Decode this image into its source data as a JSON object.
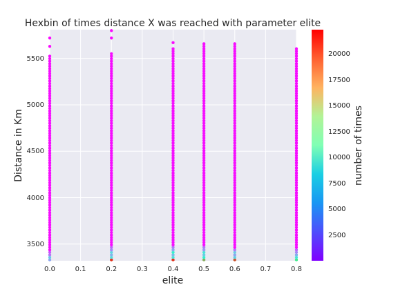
{
  "chart_data": {
    "type": "hexbin",
    "title": "Hexbin of times distance X was reached with parameter elite",
    "xlabel": "elite",
    "ylabel": "Distance in Km",
    "colorbar_label": "number of times",
    "xlim": [
      0.0,
      0.8
    ],
    "ylim": [
      3320,
      5810
    ],
    "x_ticks": [
      "0.0",
      "0.1",
      "0.2",
      "0.3",
      "0.4",
      "0.5",
      "0.6",
      "0.7",
      "0.8"
    ],
    "y_ticks": [
      "3500",
      "4000",
      "4500",
      "5000",
      "5500"
    ],
    "colorbar_ticks": [
      "2500",
      "5000",
      "7500",
      "10000",
      "12500",
      "15000",
      "17500",
      "20000"
    ],
    "colorbar_range": [
      0,
      22300
    ],
    "colormap": "rainbow",
    "grid": true,
    "background": "#eaeaf2",
    "series": [
      {
        "x": 0.0,
        "ymin": 3330,
        "ymax": 5550,
        "outliers": [
          5630,
          5720
        ],
        "bottom_counts": [
          5000,
          6500,
          3500,
          2500
        ]
      },
      {
        "x": 0.2,
        "ymin": 3330,
        "ymax": 5560,
        "outliers": [
          5720,
          5800
        ],
        "bottom_counts": [
          21000,
          7500,
          5500,
          7000,
          4000,
          3000
        ]
      },
      {
        "x": 0.4,
        "ymin": 3330,
        "ymax": 5620,
        "outliers": [
          5670
        ],
        "bottom_counts": [
          21000,
          8000,
          6000,
          9000,
          5000,
          3500
        ]
      },
      {
        "x": 0.5,
        "ymin": 3330,
        "ymax": 5670,
        "outliers": [],
        "bottom_counts": [
          17000,
          9000,
          6500,
          8000,
          4500,
          3500
        ]
      },
      {
        "x": 0.6,
        "ymin": 3330,
        "ymax": 5670,
        "outliers": [],
        "bottom_counts": [
          20000,
          7000,
          5000,
          6500,
          3500
        ]
      },
      {
        "x": 0.8,
        "ymin": 3330,
        "ymax": 5620,
        "outliers": [],
        "bottom_counts": [
          14000,
          8000,
          5500,
          4000,
          3000
        ]
      }
    ]
  }
}
